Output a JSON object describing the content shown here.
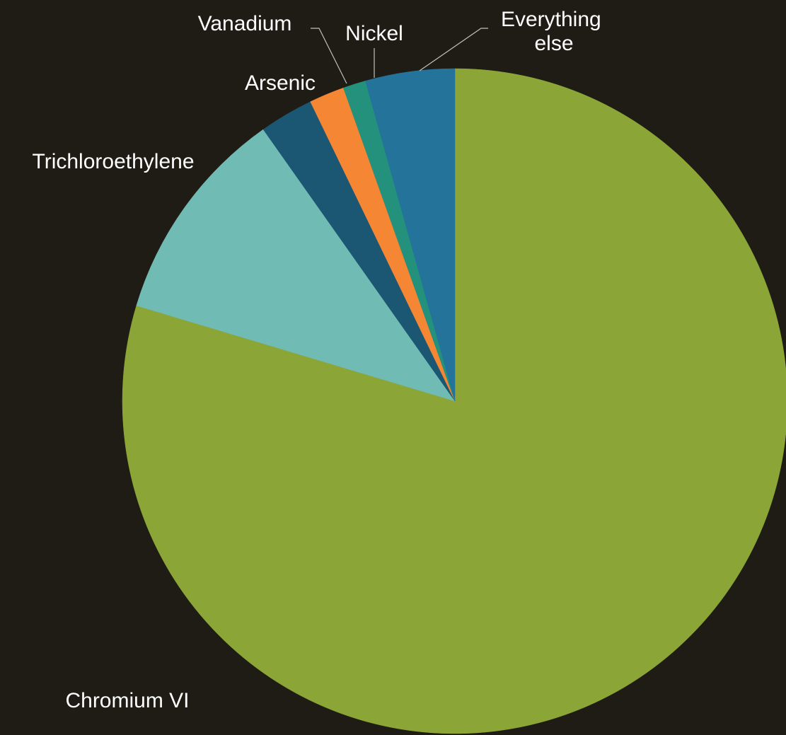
{
  "chart_data": {
    "type": "pie",
    "start_angle_deg": 0,
    "direction": "clockwise",
    "legend": "none",
    "slices": [
      {
        "label": "Chromium VI",
        "value": 79.0,
        "color": "#8ba536"
      },
      {
        "label": "Trichloroethylene",
        "value": 10.5,
        "color": "#71bbb5"
      },
      {
        "label": "Arsenic",
        "value": 2.6,
        "color": "#1b5672"
      },
      {
        "label": "Vanadium",
        "value": 1.7,
        "color": "#f58634"
      },
      {
        "label": "Nickel",
        "value": 1.1,
        "color": "#23917c"
      },
      {
        "label": "Everything else",
        "label_lines": [
          "Everything",
          "else"
        ],
        "value": 4.3,
        "color": "#24739b"
      }
    ]
  }
}
